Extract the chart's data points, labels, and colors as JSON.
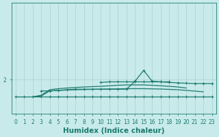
{
  "xlabel": "Humidex (Indice chaleur)",
  "line_color": "#1a7a6e",
  "bg_color": "#c8eaea",
  "grid_color": "#aacece",
  "ylim": [
    0,
    6.5
  ],
  "xlim": [
    -0.5,
    23.5
  ],
  "yticks": [
    2
  ],
  "xticks": [
    0,
    1,
    2,
    3,
    4,
    5,
    6,
    7,
    8,
    9,
    10,
    11,
    12,
    13,
    14,
    15,
    16,
    17,
    18,
    19,
    20,
    21,
    22,
    23
  ],
  "tick_fontsize": 5.5,
  "xlabel_fontsize": 7.5,
  "lines": [
    {
      "x": [
        0,
        1,
        2,
        3,
        4,
        5,
        6,
        7,
        8,
        9,
        10,
        11,
        12,
        13,
        14,
        15,
        16,
        17,
        18,
        19,
        20,
        21,
        22,
        23
      ],
      "y": [
        1.0,
        1.0,
        1.0,
        1.0,
        1.0,
        1.0,
        1.0,
        1.0,
        1.0,
        1.0,
        1.0,
        1.0,
        1.0,
        1.0,
        1.0,
        1.0,
        1.0,
        1.0,
        1.0,
        1.0,
        1.0,
        1.0,
        1.0,
        1.0
      ],
      "marker": true,
      "lw": 0.9
    },
    {
      "x": [
        2,
        3,
        4,
        5,
        6,
        7,
        8,
        9,
        10,
        11,
        12,
        13,
        14,
        15,
        16,
        17,
        18,
        19,
        20,
        21,
        22
      ],
      "y": [
        1.0,
        1.05,
        1.35,
        1.38,
        1.4,
        1.42,
        1.43,
        1.44,
        1.45,
        1.46,
        1.47,
        1.48,
        1.48,
        1.48,
        1.47,
        1.46,
        1.44,
        1.42,
        1.38,
        1.34,
        1.3
      ],
      "marker": false,
      "lw": 0.9
    },
    {
      "x": [
        2,
        3,
        4,
        5,
        6,
        7,
        8,
        9,
        10,
        11,
        12,
        13,
        14,
        15,
        16,
        17,
        18,
        19,
        20
      ],
      "y": [
        1.0,
        1.1,
        1.42,
        1.48,
        1.52,
        1.55,
        1.58,
        1.6,
        1.62,
        1.65,
        1.68,
        1.7,
        1.7,
        1.7,
        1.68,
        1.65,
        1.62,
        1.58,
        1.52
      ],
      "marker": false,
      "lw": 0.9
    },
    {
      "x": [
        3,
        4,
        5,
        6,
        7,
        8,
        9,
        10,
        11,
        12,
        13,
        14,
        15,
        16,
        17,
        18
      ],
      "y": [
        1.35,
        1.35,
        1.38,
        1.42,
        1.45,
        1.45,
        1.45,
        1.45,
        1.45,
        1.45,
        1.45,
        1.92,
        2.55,
        1.92,
        1.88,
        1.88
      ],
      "marker": true,
      "lw": 0.9
    },
    {
      "x": [
        10,
        11,
        12,
        13,
        14,
        15,
        16,
        17,
        18,
        19,
        20,
        21,
        22,
        23
      ],
      "y": [
        1.85,
        1.88,
        1.88,
        1.88,
        1.88,
        1.88,
        1.88,
        1.88,
        1.85,
        1.82,
        1.8,
        1.78,
        1.78,
        1.78
      ],
      "marker": true,
      "lw": 0.9
    }
  ]
}
